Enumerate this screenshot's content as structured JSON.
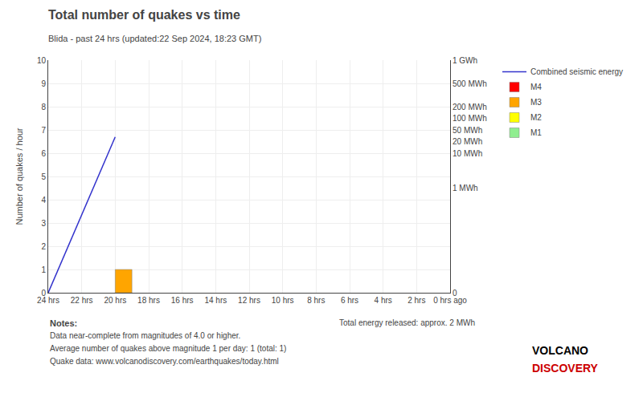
{
  "chart_data": {
    "type": "line",
    "title": "Total number of quakes vs time",
    "subtitle": "Blida - past 24 hrs (updated:22 Sep 2024, 18:23 GMT)",
    "y_label": "Number of quakes / hour",
    "xlim": [
      0,
      24
    ],
    "xticks": [
      {
        "value": 0,
        "label": "24 hrs"
      },
      {
        "value": 2,
        "label": "22 hrs"
      },
      {
        "value": 4,
        "label": "20 hrs"
      },
      {
        "value": 6,
        "label": "18 hrs"
      },
      {
        "value": 8,
        "label": "16 hrs"
      },
      {
        "value": 10,
        "label": "14 hrs"
      },
      {
        "value": 12,
        "label": "12 hrs"
      },
      {
        "value": 14,
        "label": "10 hrs"
      },
      {
        "value": 16,
        "label": "8 hrs"
      },
      {
        "value": 18,
        "label": "6 hrs"
      },
      {
        "value": 20,
        "label": "4 hrs"
      },
      {
        "value": 22,
        "label": "2 hrs"
      },
      {
        "value": 24,
        "label": "0 hrs ago"
      }
    ],
    "ylim": [
      0,
      10
    ],
    "yticks": [
      0,
      1,
      2,
      3,
      4,
      5,
      6,
      7,
      8,
      9,
      10
    ],
    "y2lim": [
      0,
      10
    ],
    "y2ticks": [
      {
        "value": 10,
        "label": "1 GWh"
      },
      {
        "value": 9,
        "label": "500 MWh"
      },
      {
        "value": 8,
        "label": "200 MWh"
      },
      {
        "value": 7.5,
        "label": "100 MWh"
      },
      {
        "value": 7,
        "label": "50 MWh"
      },
      {
        "value": 6.5,
        "label": "20 MWh"
      },
      {
        "value": 6,
        "label": "10 MWh"
      },
      {
        "value": 4.5,
        "label": "1 MWh"
      },
      {
        "value": 0,
        "label": "0"
      }
    ],
    "grid": true,
    "legend": "right",
    "series": [
      {
        "name": "Combined seismic energy",
        "type": "line",
        "axis": "y2",
        "color": "#3333cc",
        "x": [
          0,
          4
        ],
        "values": [
          0,
          6.7
        ]
      },
      {
        "name": "M4",
        "type": "bar",
        "color": "#FF0000",
        "x": [],
        "values": []
      },
      {
        "name": "M3",
        "type": "bar",
        "color": "#FFA500",
        "x": [
          4.5
        ],
        "values": [
          1.0
        ]
      },
      {
        "name": "M2",
        "type": "bar",
        "color": "#FFFF00",
        "x": [],
        "values": []
      },
      {
        "name": "M1",
        "type": "bar",
        "color": "#90EE90",
        "x": [],
        "values": []
      }
    ],
    "notes": [
      "Notes:",
      "Data near-complete from magnitudes of 4.0 or higher.",
      "Average number of quakes above magnitude 1 per day: 1 (total: 1)",
      "Quake data: www.volcanodiscovery.com/earthquakes/today.html"
    ],
    "energy_text": "Total energy released: approx. 2 MWh",
    "logo": [
      {
        "text": "VOLCANO",
        "color": "#000000"
      },
      {
        "text": "DISCOVERY",
        "color": "#cc0000"
      }
    ]
  }
}
